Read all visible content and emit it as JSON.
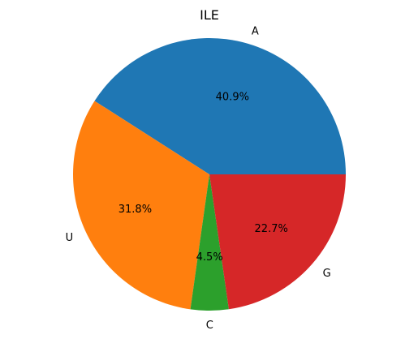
{
  "chart_data": {
    "type": "pie",
    "title": "ILE",
    "slices": [
      {
        "label": "A",
        "value": 40.9,
        "pct_label": "40.9%",
        "color": "#1f77b4"
      },
      {
        "label": "U",
        "value": 31.8,
        "pct_label": "31.8%",
        "color": "#ff7f0e"
      },
      {
        "label": "C",
        "value": 4.5,
        "pct_label": "4.5%",
        "color": "#2ca02c"
      },
      {
        "label": "G",
        "value": 22.7,
        "pct_label": "22.7%",
        "color": "#d62728"
      }
    ],
    "start_angle_deg": 0,
    "direction": "counterclockwise",
    "legend": "none"
  }
}
